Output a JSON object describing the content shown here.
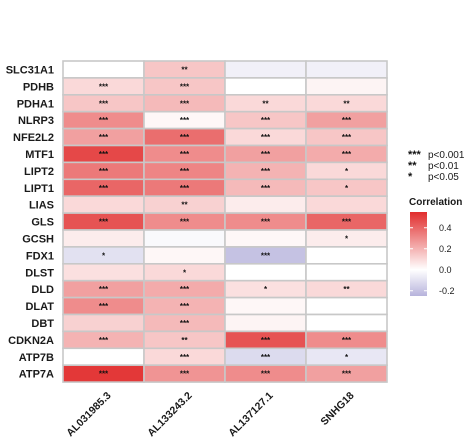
{
  "chart_data": {
    "type": "heatmap",
    "rows": [
      "SLC31A1",
      "PDHB",
      "PDHA1",
      "NLRP3",
      "NFE2L2",
      "MTF1",
      "LIPT2",
      "LIPT1",
      "LIAS",
      "GLS",
      "GCSH",
      "FDX1",
      "DLST",
      "DLD",
      "DLAT",
      "DBT",
      "CDKN2A",
      "ATP7B",
      "ATP7A"
    ],
    "columns": [
      "AL031985.3",
      "AL133243.2",
      "AL137127.1",
      "SNHG18"
    ],
    "values": [
      [
        0.0,
        0.15,
        -0.05,
        -0.05
      ],
      [
        0.1,
        0.15,
        0.0,
        0.03
      ],
      [
        0.15,
        0.18,
        0.1,
        0.1
      ],
      [
        0.3,
        0.02,
        0.15,
        0.25
      ],
      [
        0.25,
        0.38,
        0.1,
        0.15
      ],
      [
        0.48,
        0.3,
        0.25,
        0.22
      ],
      [
        0.35,
        0.32,
        0.2,
        0.1
      ],
      [
        0.4,
        0.35,
        0.18,
        0.15
      ],
      [
        0.1,
        0.12,
        0.05,
        0.1
      ],
      [
        0.45,
        0.3,
        0.3,
        0.4
      ],
      [
        0.05,
        -0.02,
        0.02,
        0.05
      ],
      [
        -0.1,
        0.02,
        -0.2,
        0.0
      ],
      [
        0.08,
        0.1,
        0.0,
        0.0
      ],
      [
        0.25,
        0.22,
        0.08,
        0.1
      ],
      [
        0.3,
        0.2,
        0.02,
        0.0
      ],
      [
        0.12,
        0.18,
        0.03,
        0.0
      ],
      [
        0.2,
        0.15,
        0.45,
        0.3
      ],
      [
        0.0,
        0.1,
        -0.12,
        -0.08
      ],
      [
        0.52,
        0.28,
        0.3,
        0.25
      ]
    ],
    "significance": [
      [
        "",
        "**",
        "",
        ""
      ],
      [
        "***",
        "***",
        "",
        ""
      ],
      [
        "***",
        "***",
        "**",
        "**"
      ],
      [
        "***",
        "***",
        "***",
        "***"
      ],
      [
        "***",
        "***",
        "***",
        "***"
      ],
      [
        "***",
        "***",
        "***",
        "***"
      ],
      [
        "***",
        "***",
        "***",
        "*"
      ],
      [
        "***",
        "***",
        "***",
        "*"
      ],
      [
        "",
        "**",
        "",
        ""
      ],
      [
        "***",
        "***",
        "***",
        "***"
      ],
      [
        "",
        "",
        "",
        "*"
      ],
      [
        "*",
        "",
        "***",
        ""
      ],
      [
        "",
        "*",
        "",
        ""
      ],
      [
        "***",
        "***",
        "*",
        "**"
      ],
      [
        "***",
        "***",
        "",
        ""
      ],
      [
        "",
        "***",
        "",
        ""
      ],
      [
        "***",
        "**",
        "***",
        "***"
      ],
      [
        "",
        "***",
        "***",
        "*"
      ],
      [
        "***",
        "***",
        "***",
        "***"
      ]
    ],
    "legend": {
      "title": "Correlation",
      "ticks": [
        0.4,
        0.2,
        0.0,
        -0.2
      ],
      "tick_labels": [
        "0.4",
        "0.2",
        "0.0",
        "-0.2"
      ],
      "range": [
        -0.25,
        0.55
      ],
      "colors": {
        "low": "#b7b3dc",
        "mid": "#ffffff",
        "high": "#e12d2d"
      }
    },
    "significance_key": [
      {
        "symbol": "***",
        "label": "p<0.001"
      },
      {
        "symbol": "**",
        "label": "p<0.01"
      },
      {
        "symbol": "*",
        "label": "p<0.05"
      }
    ],
    "cell_border_color": "#c8c8c8"
  }
}
